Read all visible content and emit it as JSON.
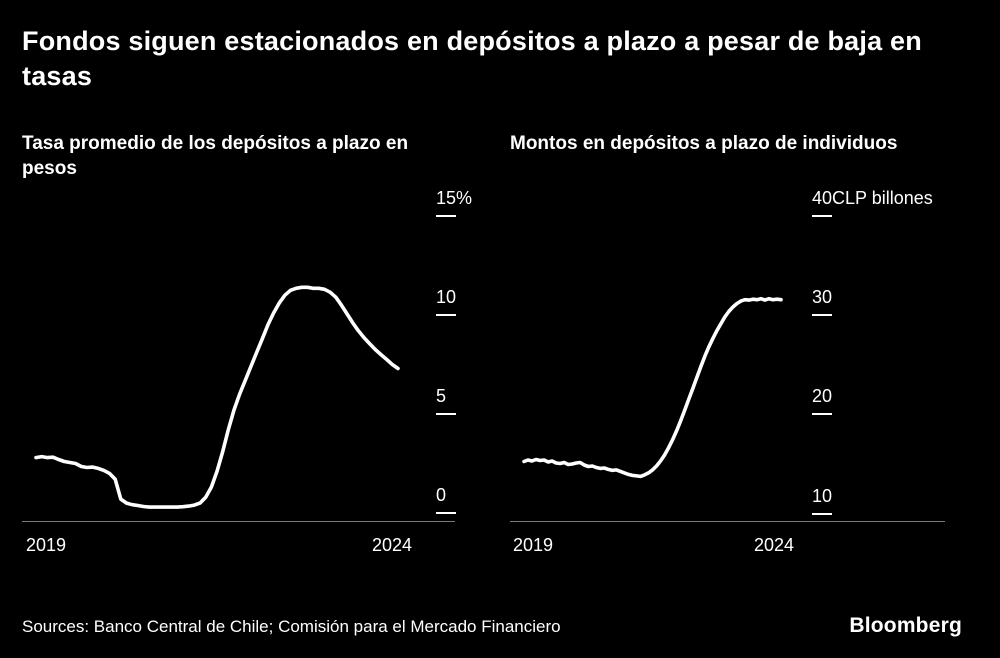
{
  "header": {
    "title": "Fondos siguen estacionados en depósitos a plazo a pesar de baja en tasas"
  },
  "footer": {
    "sources": "Sources: Banco Central de Chile; Comisión para el Mercado Financiero",
    "brand": "Bloomberg"
  },
  "colors": {
    "background": "#000000",
    "text": "#ffffff",
    "line": "#ffffff",
    "axis": "#76787b"
  },
  "chart_data": [
    {
      "type": "line",
      "title": "Tasa promedio de los depósitos a plazo en pesos",
      "unit": "%",
      "x_range": [
        2019,
        2024.42
      ],
      "x_ticks": [
        "2019",
        "2024"
      ],
      "ylim": [
        0,
        15
      ],
      "y_ticks": [
        15,
        10,
        5,
        0
      ],
      "y_tick_labels": [
        "15%",
        "10",
        "5",
        "0"
      ],
      "grid": false,
      "legend": "none",
      "values": [
        2.8,
        2.85,
        2.8,
        2.82,
        2.7,
        2.6,
        2.55,
        2.5,
        2.35,
        2.3,
        2.32,
        2.25,
        2.15,
        2.0,
        1.7,
        0.7,
        0.5,
        0.42,
        0.38,
        0.33,
        0.3,
        0.3,
        0.3,
        0.3,
        0.3,
        0.3,
        0.32,
        0.35,
        0.4,
        0.5,
        0.8,
        1.3,
        2.1,
        3.1,
        4.2,
        5.2,
        6.0,
        6.7,
        7.4,
        8.1,
        8.8,
        9.5,
        10.1,
        10.6,
        11.0,
        11.25,
        11.35,
        11.4,
        11.4,
        11.35,
        11.35,
        11.3,
        11.15,
        10.9,
        10.5,
        10.05,
        9.6,
        9.2,
        8.85,
        8.55,
        8.25,
        8.0,
        7.75,
        7.5,
        7.3
      ]
    },
    {
      "type": "line",
      "title": "Montos en depósitos a plazo de individuos",
      "unit": "CLP billones",
      "x_range": [
        2019,
        2024.42
      ],
      "x_ticks": [
        "2019",
        "2024"
      ],
      "ylim": [
        10,
        40
      ],
      "y_ticks": [
        40,
        30,
        20,
        10
      ],
      "y_tick_labels": [
        "40CLP billones",
        "30",
        "20",
        "10"
      ],
      "grid": false,
      "legend": "none",
      "values": [
        15.2,
        15.35,
        15.25,
        15.4,
        15.3,
        15.35,
        15.15,
        15.25,
        15.05,
        15.0,
        15.1,
        14.9,
        14.95,
        15.05,
        15.1,
        14.85,
        14.7,
        14.75,
        14.6,
        14.5,
        14.55,
        14.4,
        14.3,
        14.35,
        14.2,
        14.05,
        13.9,
        13.8,
        13.75,
        13.7,
        13.85,
        14.05,
        14.35,
        14.75,
        15.25,
        15.85,
        16.6,
        17.4,
        18.3,
        19.3,
        20.35,
        21.45,
        22.55,
        23.65,
        24.75,
        25.8,
        26.75,
        27.6,
        28.4,
        29.1,
        29.8,
        30.35,
        30.8,
        31.15,
        31.4,
        31.55,
        31.5,
        31.6,
        31.55,
        31.65,
        31.5,
        31.65,
        31.55,
        31.6,
        31.55
      ]
    }
  ]
}
